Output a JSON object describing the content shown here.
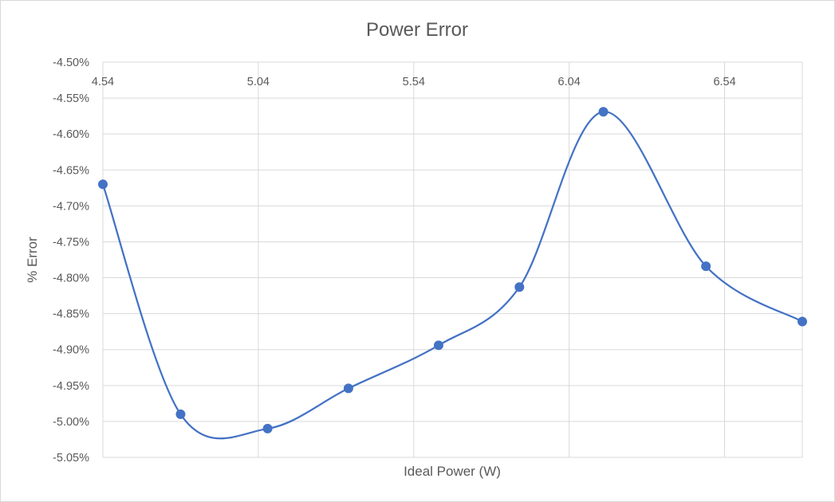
{
  "chart_data": {
    "type": "scatter",
    "title": "Power Error",
    "xlabel": "Ideal Power (W)",
    "ylabel": "% Error",
    "x_axis_position": "top",
    "xlim": [
      4.54,
      6.79
    ],
    "ylim": [
      -5.05,
      -4.5
    ],
    "x_ticks": [
      "4.54",
      "5.04",
      "5.54",
      "6.04",
      "6.54"
    ],
    "x_tick_values": [
      4.54,
      5.04,
      5.54,
      6.04,
      6.54
    ],
    "y_ticks": [
      "-4.50%",
      "-4.55%",
      "-4.60%",
      "-4.65%",
      "-4.70%",
      "-4.75%",
      "-4.80%",
      "-4.85%",
      "-4.90%",
      "-4.95%",
      "-5.00%",
      "-5.05%"
    ],
    "y_tick_values": [
      -4.5,
      -4.55,
      -4.6,
      -4.65,
      -4.7,
      -4.75,
      -4.8,
      -4.85,
      -4.9,
      -4.95,
      -5.0,
      -5.05
    ],
    "grid": true,
    "smooth_line": true,
    "series": [
      {
        "color": "#4472c4",
        "points": [
          {
            "x": 4.54,
            "y": -4.67
          },
          {
            "x": 4.79,
            "y": -4.99
          },
          {
            "x": 5.07,
            "y": -5.01
          },
          {
            "x": 5.33,
            "y": -4.954
          },
          {
            "x": 5.62,
            "y": -4.894
          },
          {
            "x": 5.88,
            "y": -4.813
          },
          {
            "x": 6.15,
            "y": -4.569
          },
          {
            "x": 6.48,
            "y": -4.784
          },
          {
            "x": 6.79,
            "y": -4.861
          }
        ]
      }
    ]
  }
}
